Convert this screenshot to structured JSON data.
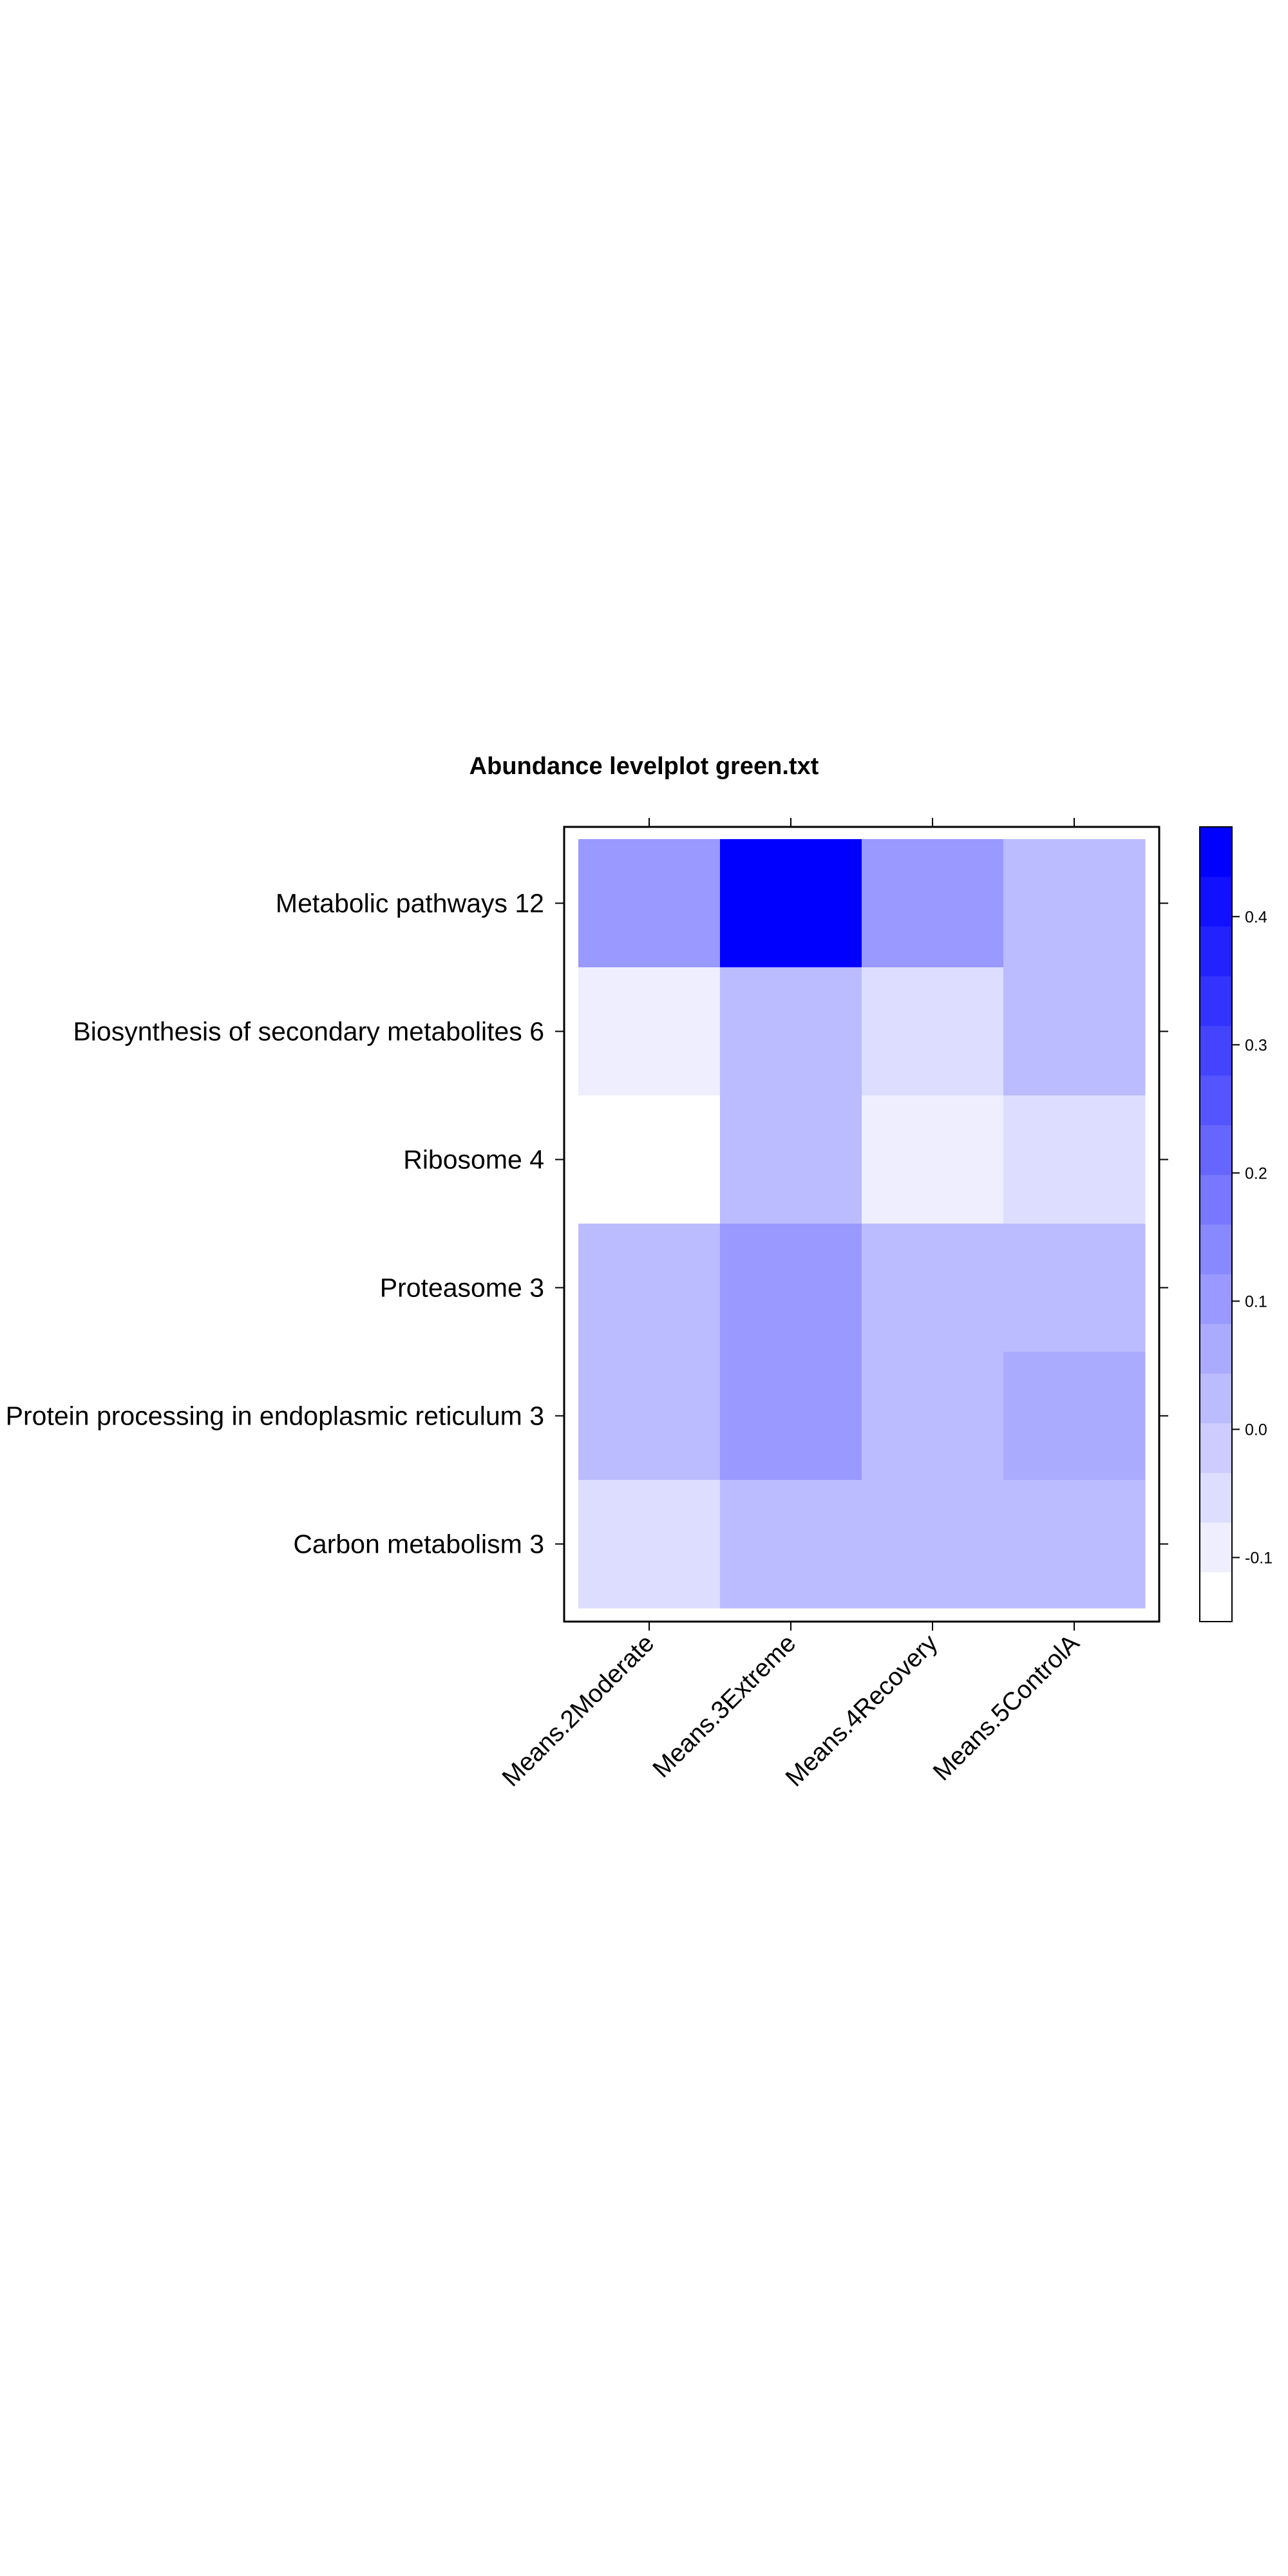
{
  "chart_data": {
    "type": "heatmap",
    "title": "Abundance levelplot green.txt",
    "xlabel": "",
    "ylabel": "",
    "columns": [
      "Means.2Moderate",
      "Means.3Extreme",
      "Means.4Recovery",
      "Means.5ControlA"
    ],
    "rows": [
      "Metabolic pathways 12",
      "Biosynthesis of secondary metabolites 6",
      "Ribosome 4",
      "Proteasome 3",
      "Protein processing in endoplasmic reticulum 3",
      "Carbon metabolism 3"
    ],
    "values": [
      [
        0.12,
        0.46,
        0.1,
        0.03
      ],
      [
        -0.09,
        0.03,
        -0.07,
        0.01
      ],
      [
        -0.15,
        0.01,
        -0.1,
        -0.06
      ],
      [
        0.01,
        0.12,
        0.03,
        0.03
      ],
      [
        0.01,
        0.1,
        0.03,
        0.06
      ],
      [
        -0.06,
        0.01,
        0.01,
        0.01
      ]
    ],
    "colorbar": {
      "range": [
        -0.15,
        0.47
      ],
      "ticks": [
        -0.1,
        0.0,
        0.1,
        0.2,
        0.3,
        0.4
      ],
      "tick_labels": [
        "-0.1",
        "0.0",
        "0.1",
        "0.2",
        "0.3",
        "0.4"
      ],
      "levels": 16,
      "low_color": "#ffffff",
      "high_color": "#0000ff"
    },
    "grid": false,
    "legend_position": "right"
  }
}
